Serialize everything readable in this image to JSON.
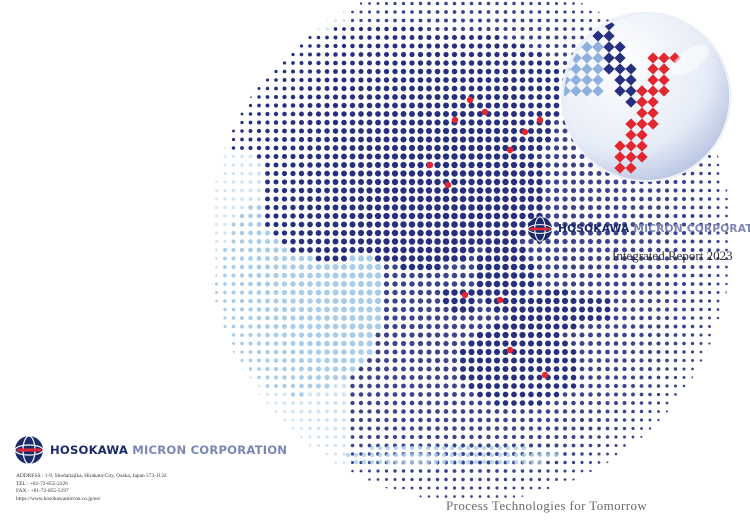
{
  "company": {
    "name_bold": "HOSOKAWA",
    "name_rest": "MICRON CORPORATION"
  },
  "report": {
    "title": "Integrated Report 2023"
  },
  "contact": {
    "address": "ADDRESS : 1-9, Shodaitajika, Hirakata-City, Osaka, Japan 573-1132",
    "tel": "TEL : +81-72-855-2226",
    "fax": "FAX : +81-72-855-5197",
    "url": "https://www.hosokawamicron.co.jp/en/"
  },
  "tagline": "Process Technologies for Tomorrow",
  "colors": {
    "navy": "#1b2a6b",
    "dot_navy": "#27307f",
    "dot_light": "#a8cdea",
    "accent_red": "#e3262f",
    "tagline_gray": "#6a6a6a"
  },
  "icons": {
    "logo": "globe-mark-icon",
    "illustration": "dotted-globe-icon",
    "lens": "magnifier-lens-icon"
  }
}
